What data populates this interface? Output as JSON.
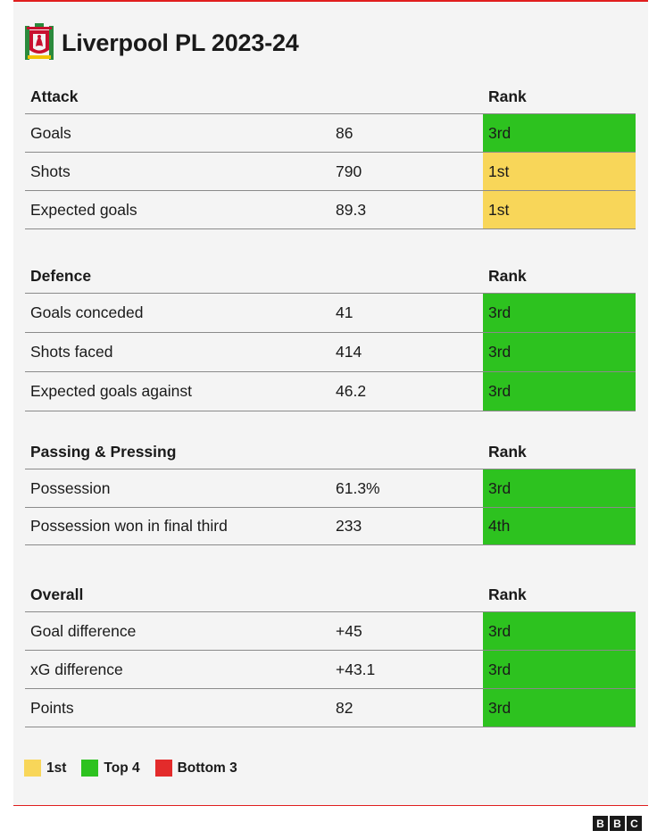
{
  "title": "Liverpool PL 2023-24",
  "colors": {
    "first": "#f8d659",
    "top4": "#2dc21f",
    "bottom3": "#e32b2b",
    "accent": "#e01e1e"
  },
  "sections": [
    {
      "name": "Attack",
      "rank_header": "Rank",
      "rows": [
        {
          "label": "Goals",
          "value": "86",
          "rank": "3rd",
          "tier": "top4"
        },
        {
          "label": "Shots",
          "value": "790",
          "rank": "1st",
          "tier": "first"
        },
        {
          "label": "Expected goals",
          "value": "89.3",
          "rank": "1st",
          "tier": "first"
        }
      ]
    },
    {
      "name": "Defence",
      "rank_header": "Rank",
      "rows": [
        {
          "label": "Goals conceded",
          "value": "41",
          "rank": "3rd",
          "tier": "top4"
        },
        {
          "label": "Shots faced",
          "value": "414",
          "rank": "3rd",
          "tier": "top4"
        },
        {
          "label": "Expected goals against",
          "value": "46.2",
          "rank": "3rd",
          "tier": "top4"
        }
      ]
    },
    {
      "name": "Passing & Pressing",
      "rank_header": "Rank",
      "rows": [
        {
          "label": "Possession",
          "value": "61.3%",
          "rank": "3rd",
          "tier": "top4"
        },
        {
          "label": "Possession won in final third",
          "value": "233",
          "rank": "4th",
          "tier": "top4"
        }
      ]
    },
    {
      "name": "Overall",
      "rank_header": "Rank",
      "rows": [
        {
          "label": "Goal difference",
          "value": "+45",
          "rank": "3rd",
          "tier": "top4"
        },
        {
          "label": "xG difference",
          "value": "+43.1",
          "rank": "3rd",
          "tier": "top4"
        },
        {
          "label": "Points",
          "value": "82",
          "rank": "3rd",
          "tier": "top4"
        }
      ]
    }
  ],
  "legend": [
    {
      "label": "1st",
      "tier": "first"
    },
    {
      "label": "Top 4",
      "tier": "top4"
    },
    {
      "label": "Bottom 3",
      "tier": "bottom3"
    }
  ],
  "footer": {
    "logo_letters": [
      "B",
      "B",
      "C"
    ]
  }
}
